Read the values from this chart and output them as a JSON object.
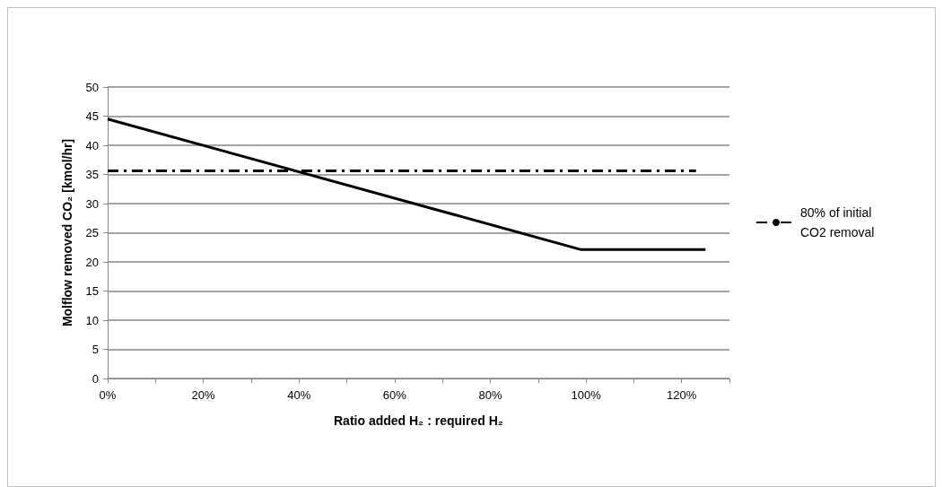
{
  "chart_data": {
    "type": "line",
    "xlabel": "Ratio added H₂ : required H₂",
    "ylabel": "Molflow removed CO₂ [kmol/hr]",
    "series": [
      {
        "color": "#000000",
        "x": [
          0,
          99,
          125
        ],
        "values": [
          44.5,
          22.1,
          22.1
        ],
        "line_style": "solid"
      },
      {
        "name": "80% of initial CO2 removal",
        "color": "#000000",
        "x": [
          0,
          123
        ],
        "values": [
          35.6,
          35.6
        ],
        "line_style": "dashed"
      }
    ],
    "xlim": [
      0,
      130
    ],
    "xticks": [
      {
        "value": 0,
        "label": "0%"
      },
      {
        "value": 10,
        "label": null
      },
      {
        "value": 20,
        "label": "20%"
      },
      {
        "value": 30,
        "label": null
      },
      {
        "value": 40,
        "label": "40%"
      },
      {
        "value": 50,
        "label": null
      },
      {
        "value": 60,
        "label": "60%"
      },
      {
        "value": 70,
        "label": null
      },
      {
        "value": 80,
        "label": "80%"
      },
      {
        "value": 90,
        "label": null
      },
      {
        "value": 100,
        "label": "100%"
      },
      {
        "value": 110,
        "label": null
      },
      {
        "value": 120,
        "label": "120%"
      },
      {
        "value": 130,
        "label": null
      }
    ],
    "ylim": [
      0,
      50
    ],
    "yticks": [
      0,
      5,
      10,
      15,
      20,
      25,
      30,
      35,
      40,
      45,
      50
    ],
    "grid": "y",
    "legend": "right",
    "marker": "none"
  }
}
